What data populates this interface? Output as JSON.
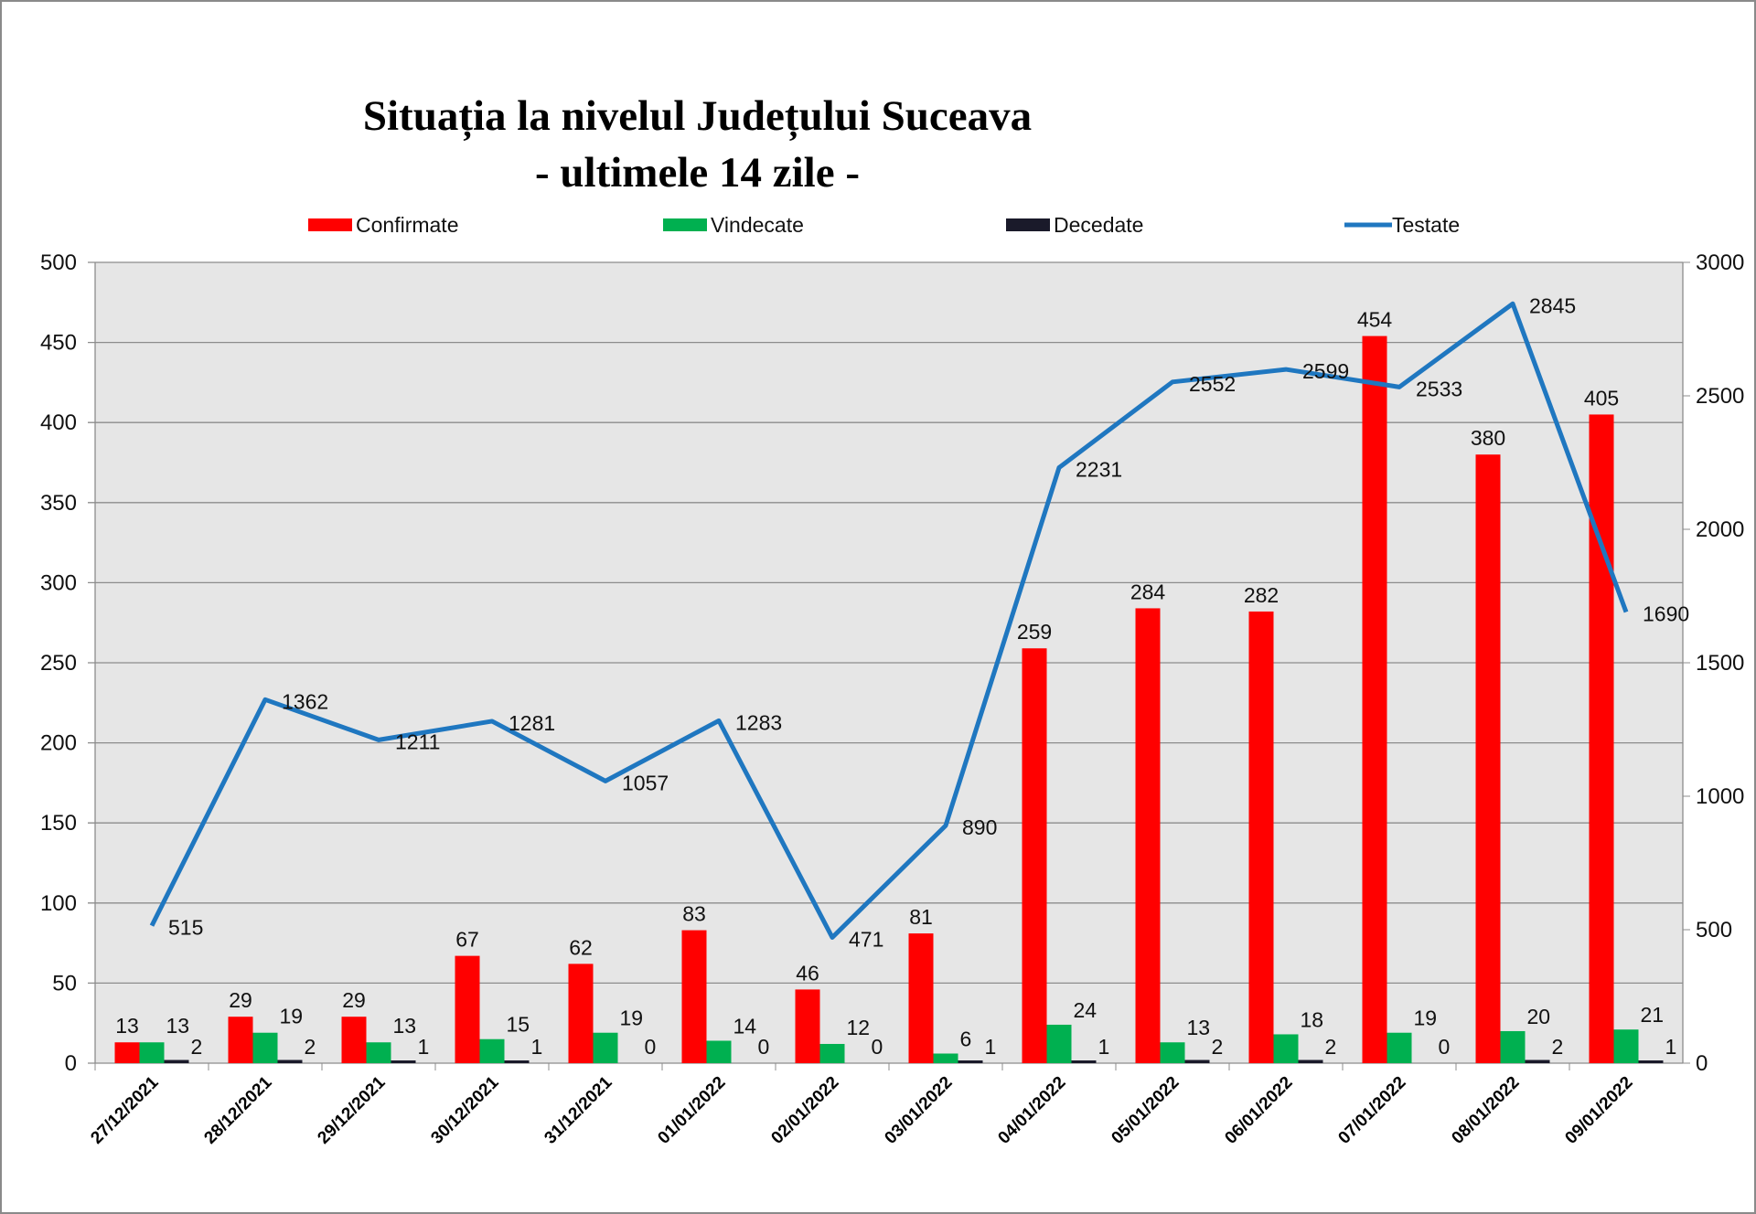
{
  "chart_data": {
    "type": "bar+line",
    "title": "Situația la nivelul Județului Suceava",
    "subtitle": "- ultimele 14 zile -",
    "categories": [
      "27/12/2021",
      "28/12/2021",
      "29/12/2021",
      "30/12/2021",
      "31/12/2021",
      "01/01/2022",
      "02/01/2022",
      "03/01/2022",
      "04/01/2022",
      "05/01/2022",
      "06/01/2022",
      "07/01/2022",
      "08/01/2022",
      "09/01/2022"
    ],
    "series": [
      {
        "name": "Confirmate",
        "type": "bar",
        "axis": "left",
        "color": "#ff0000",
        "values": [
          13,
          29,
          29,
          67,
          62,
          83,
          46,
          81,
          259,
          284,
          282,
          454,
          380,
          405
        ]
      },
      {
        "name": "Vindecate",
        "type": "bar",
        "axis": "left",
        "color": "#00b050",
        "values": [
          13,
          19,
          13,
          15,
          19,
          14,
          12,
          6,
          24,
          13,
          18,
          19,
          20,
          21
        ]
      },
      {
        "name": "Decedate",
        "type": "bar",
        "axis": "left",
        "color": "#1a1a2a",
        "values": [
          2,
          2,
          1,
          1,
          0,
          0,
          0,
          1,
          1,
          2,
          2,
          0,
          2,
          1
        ]
      },
      {
        "name": "Testate",
        "type": "line",
        "axis": "right",
        "color": "#1f77c0",
        "values": [
          515,
          1362,
          1211,
          1281,
          1057,
          1283,
          471,
          890,
          2231,
          2552,
          2599,
          2533,
          2845,
          1690
        ]
      }
    ],
    "left_axis": {
      "ylim": [
        0,
        500
      ],
      "ticks": [
        "0",
        "50",
        "100",
        "150",
        "200",
        "250",
        "300",
        "350",
        "400",
        "450",
        "500"
      ]
    },
    "right_axis": {
      "ylim": [
        0,
        3000
      ],
      "ticks": [
        "0",
        "500",
        "1000",
        "1500",
        "2000",
        "2500",
        "3000"
      ]
    },
    "grid": true,
    "legend": "top"
  }
}
